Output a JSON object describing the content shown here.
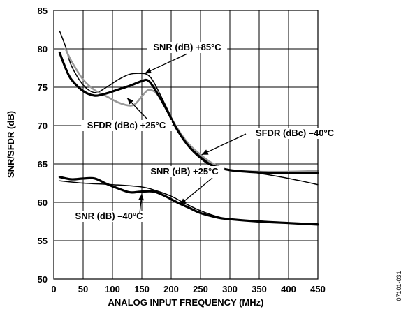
{
  "chart_data": {
    "type": "line",
    "xlabel": "ANALOG INPUT FREQUENCY (MHz)",
    "ylabel": "SNR/SFDR (dB)",
    "xlim": [
      0,
      450
    ],
    "ylim": [
      50,
      85
    ],
    "xticks": [
      0,
      50,
      100,
      150,
      200,
      250,
      300,
      350,
      400,
      450
    ],
    "yticks": [
      50,
      55,
      60,
      65,
      70,
      75,
      80,
      85
    ],
    "grid": true,
    "figure_id": "07101-031",
    "series": [
      {
        "name": "SNR (dB) +85°C",
        "color": "#000000",
        "x": [
          10,
          20,
          30,
          50,
          70,
          90,
          110,
          130,
          150,
          160,
          170,
          190,
          210,
          230,
          250,
          270,
          300,
          340,
          380,
          420,
          450
        ],
        "y": [
          82.3,
          80.3,
          77.8,
          75.3,
          74.3,
          75.0,
          76.0,
          76.7,
          76.8,
          76.6,
          75.7,
          72.7,
          69.6,
          67.5,
          66.0,
          64.9,
          64.2,
          63.9,
          63.4,
          62.8,
          62.3
        ]
      },
      {
        "name": "SFDR (dBc) +25°C",
        "color": "#999999",
        "x": [
          20,
          30,
          50,
          70,
          90,
          110,
          130,
          140,
          150,
          160,
          170,
          180,
          190,
          210,
          230,
          250,
          270,
          300,
          350,
          400,
          450
        ],
        "y": [
          80.0,
          78.4,
          76.0,
          74.6,
          73.8,
          73.0,
          72.6,
          72.9,
          73.8,
          74.6,
          74.5,
          73.7,
          72.4,
          69.7,
          67.6,
          66.2,
          65.1,
          64.2,
          64.0,
          64.0,
          64.1
        ]
      },
      {
        "name": "SFDR (dBc) –40°C",
        "color": "#000000",
        "x": [
          10,
          20,
          30,
          50,
          70,
          90,
          110,
          130,
          150,
          160,
          170,
          190,
          210,
          230,
          250,
          270,
          300,
          350,
          400,
          450
        ],
        "y": [
          79.5,
          77.5,
          76.0,
          74.5,
          73.9,
          74.2,
          74.7,
          75.2,
          75.8,
          75.9,
          75.0,
          72.4,
          69.5,
          67.3,
          65.8,
          64.8,
          64.2,
          63.9,
          63.8,
          63.8
        ]
      },
      {
        "name": "SNR (dB) +25°C",
        "color": "#000000",
        "x": [
          10,
          50,
          100,
          150,
          175,
          200,
          225,
          250,
          280,
          300,
          350,
          400,
          450
        ],
        "y": [
          62.8,
          62.5,
          62.3,
          62.0,
          61.5,
          60.8,
          59.8,
          58.9,
          58.1,
          57.8,
          57.5,
          57.3,
          57.2
        ]
      },
      {
        "name": "SNR (dB) –40°C",
        "color": "#000000",
        "x": [
          10,
          30,
          50,
          70,
          90,
          110,
          130,
          150,
          170,
          190,
          210,
          230,
          250,
          280,
          300,
          350,
          400,
          450
        ],
        "y": [
          63.3,
          63.0,
          63.1,
          63.1,
          62.4,
          61.8,
          61.3,
          61.4,
          61.4,
          60.8,
          60.0,
          59.3,
          58.6,
          58.0,
          57.8,
          57.5,
          57.3,
          57.1
        ]
      }
    ],
    "annotations": [
      {
        "text": "SNR (dB) +85°C",
        "points_to": [
          155,
          76.8
        ]
      },
      {
        "text": "SFDR (dBc) +25°C",
        "points_to": [
          125,
          73.6
        ]
      },
      {
        "text": "SFDR (dBc) –40°C",
        "points_to": [
          252,
          66.2
        ]
      },
      {
        "text": "SNR (dB) +25°C",
        "points_to": [
          215,
          59.7
        ]
      },
      {
        "text": "SNR (dB) –40°C",
        "points_to": [
          150,
          61.1
        ]
      }
    ]
  }
}
